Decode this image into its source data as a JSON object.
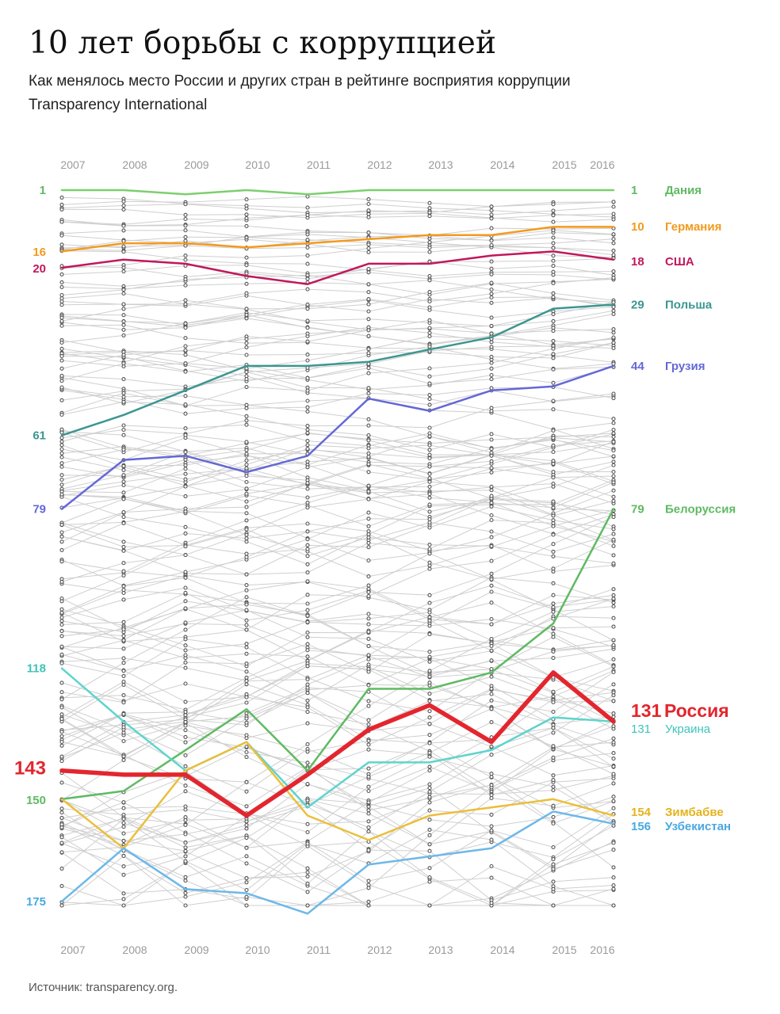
{
  "header": {
    "title": "10 лет борьбы с коррупцией",
    "subtitle": "Как менялось место России и других стран в рейтинге восприятия коррупции Transparency International"
  },
  "footer": {
    "source": "Источник: transparency.org."
  },
  "chart_data": {
    "type": "line",
    "y_axis": "rank (inverted: 1 at top)",
    "ylim": [
      1,
      175
    ],
    "x": [
      "2007",
      "2008",
      "2009",
      "2010",
      "2011",
      "2012",
      "2013",
      "2014",
      "2015",
      "2016"
    ],
    "series": [
      {
        "name": "Дания",
        "color": "#7dcf6f",
        "width": 2.5,
        "values": [
          1,
          1,
          2,
          1,
          2,
          1,
          1,
          1,
          1,
          1
        ],
        "start_label": "1",
        "end_label": "1"
      },
      {
        "name": "Германия",
        "color": "#f39a1e",
        "width": 2.5,
        "values": [
          16,
          14,
          14,
          15,
          14,
          13,
          12,
          12,
          10,
          10
        ],
        "start_label": "16",
        "end_label": "10"
      },
      {
        "name": "США",
        "color": "#c0185c",
        "width": 2.5,
        "values": [
          20,
          18,
          19,
          22,
          24,
          19,
          19,
          17,
          16,
          18
        ],
        "start_label": "20",
        "end_label": "18"
      },
      {
        "name": "Польша",
        "color": "#3b9690",
        "width": 2.5,
        "values": [
          61,
          56,
          50,
          44,
          44,
          43,
          40,
          37,
          30,
          29
        ],
        "start_label": "61",
        "end_label": "29"
      },
      {
        "name": "Грузия",
        "color": "#6468d6",
        "width": 2.5,
        "values": [
          79,
          67,
          66,
          70,
          66,
          52,
          55,
          50,
          49,
          44
        ],
        "start_label": "79",
        "end_label": "44"
      },
      {
        "name": "Белоруссия",
        "color": "#5fba63",
        "width": 2.5,
        "values": [
          150,
          148,
          138,
          128,
          143,
          123,
          123,
          119,
          107,
          79
        ],
        "start_label": "150",
        "end_label": "79"
      },
      {
        "name": "Украина",
        "color": "#5ed4cc",
        "width": 2.5,
        "values": [
          118,
          131,
          143,
          136,
          152,
          141,
          141,
          138,
          130,
          131
        ],
        "start_label": "118",
        "end_label": "131"
      },
      {
        "name": "Зимбабве",
        "color": "#ebbf3b",
        "width": 2.5,
        "values": [
          150,
          162,
          143,
          136,
          154,
          160,
          154,
          152,
          150,
          154
        ],
        "start_label": "",
        "end_label": "154"
      },
      {
        "name": "Узбекистан",
        "color": "#6db8e8",
        "width": 2.5,
        "values": [
          175,
          162,
          172,
          173,
          178,
          166,
          164,
          162,
          153,
          156
        ],
        "start_label": "175",
        "end_label": "156"
      },
      {
        "name": "Россия",
        "color": "#e3262e",
        "width": 5.5,
        "values": [
          143,
          144,
          144,
          154,
          144,
          133,
          127,
          136,
          119,
          131
        ],
        "start_label": "143",
        "end_label": "131"
      }
    ],
    "label_colors": {
      "Дания": "#5fba63",
      "Германия": "#f39a1e",
      "США": "#c0185c",
      "Польша": "#3b9690",
      "Грузия": "#6468d6",
      "Белоруссия": "#5fba63",
      "Украина": "#3fc4ba",
      "Зимбабве": "#e5b21f",
      "Узбекистан": "#4aa8e0",
      "Россия": "#e3262e"
    },
    "grid": false,
    "legend": "end labels at right"
  }
}
